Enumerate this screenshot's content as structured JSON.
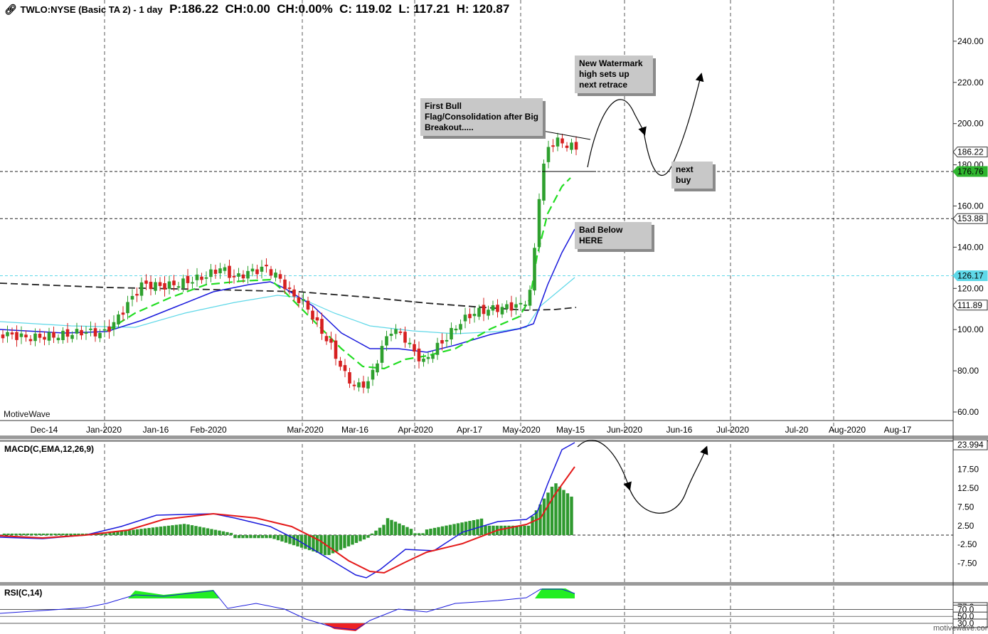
{
  "header": {
    "symbol": "TWLO:NYSE (Basic TA 2) - 1 day",
    "p": "P:186.22",
    "ch": "CH:0.00",
    "chp": "CH:0.00%",
    "c": "C: 119.02",
    "l": "L: 117.21",
    "h": "H: 120.87"
  },
  "annotations": {
    "bull_flag": "First Bull Flag/Consolidation after Big Breakout.....",
    "watermark": "New Watermark high sets up next retrace",
    "next_buy": "next buy",
    "bad_below": "Bad Below HERE"
  },
  "brand": {
    "left": "MotiveWave",
    "right": "motivewave.com"
  },
  "price_axis": {
    "ticks": [
      "240.00",
      "220.00",
      "200.00",
      "180.00",
      "160.00",
      "140.00",
      "120.00",
      "100.00",
      "80.00",
      "60.00"
    ],
    "tags": [
      {
        "text": "186.22",
        "style": "plain"
      },
      {
        "text": "176.76",
        "style": "green"
      },
      {
        "text": "153.88",
        "style": "blue"
      },
      {
        "text": "126.17",
        "style": "cyan"
      },
      {
        "text": "111.89",
        "style": "plain"
      }
    ]
  },
  "time_axis": [
    "Dec-14",
    "Jan-2020",
    "Jan-16",
    "Feb-2020",
    "Mar-2020",
    "Mar-16",
    "Apr-2020",
    "Apr-17",
    "May-2020",
    "May-15",
    "Jun-2020",
    "Jun-16",
    "Jul-2020",
    "Jul-20",
    "Aug-2020",
    "Aug-17"
  ],
  "macd": {
    "title": "MACD(C,EMA,12,26,9)",
    "ticks": [
      "23.994",
      "17.50",
      "12.50",
      "7.50",
      "2.50",
      "-2.50",
      "-7.50"
    ]
  },
  "rsi": {
    "title": "RSI(C,14)",
    "ticks": [
      "77.2",
      "70.0",
      "50.0",
      "30.0"
    ]
  },
  "colors": {
    "bull": "#2ea02e",
    "bear": "#d62020",
    "ma_blue": "#1a1adc",
    "ma_green": "#22dd22",
    "ma_cyan": "#5fd8e8",
    "ma_black": "#222222",
    "macd_signal": "#e41a1a",
    "hist": "#2f9a2f"
  }
}
